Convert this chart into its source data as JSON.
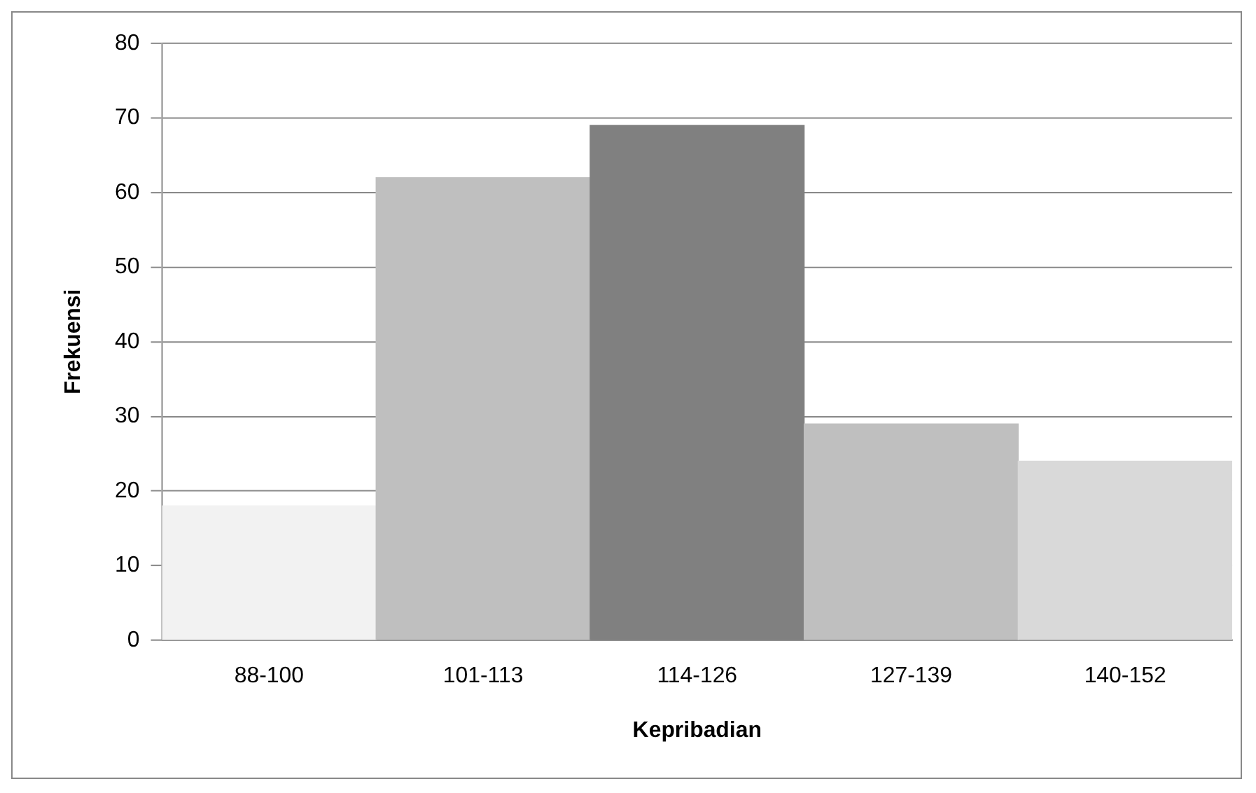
{
  "chart_data": {
    "type": "bar",
    "xlabel": "Kepribadian",
    "ylabel": "Frekuensi",
    "categories": [
      "88-100",
      "101-113",
      "114-126",
      "127-139",
      "140-152"
    ],
    "values": [
      18,
      62,
      69,
      29,
      24
    ],
    "colors": [
      "#f2f2f2",
      "#bfbfbf",
      "#808080",
      "#bfbfbf",
      "#d9d9d9"
    ],
    "ylim": [
      0,
      80
    ],
    "yticks": [
      0,
      10,
      20,
      30,
      40,
      50,
      60,
      70,
      80
    ],
    "grid": "y",
    "legend": false
  }
}
